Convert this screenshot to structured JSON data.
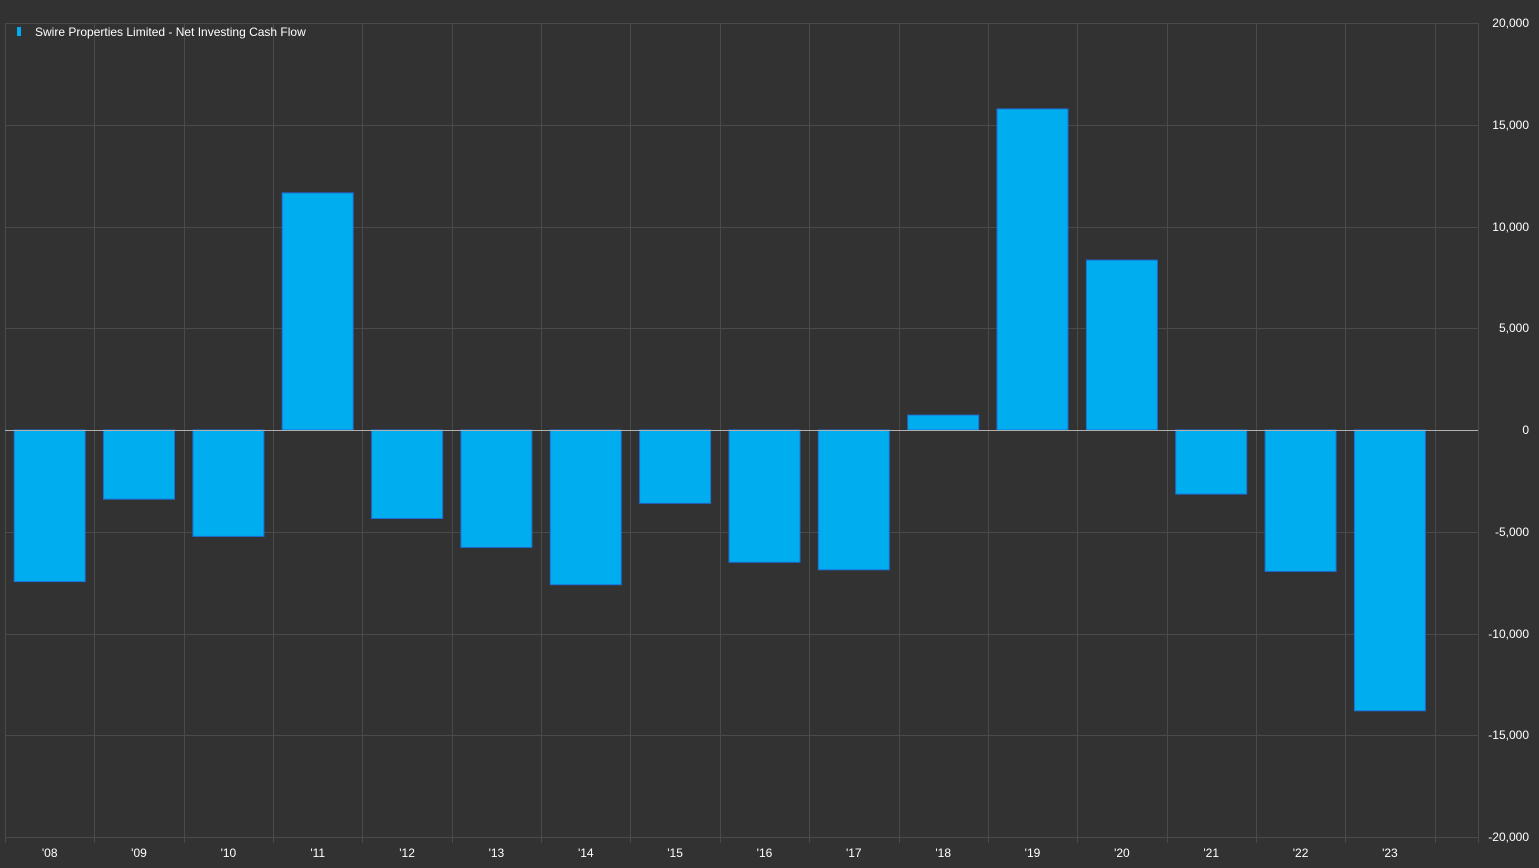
{
  "legend": {
    "label": "Swire Properties Limited - Net Investing Cash Flow",
    "placement": "top-left"
  },
  "colors": {
    "background": "#323232",
    "grid": "#4a4a4a",
    "bar_fill": "#00adee",
    "bar_stroke": "#1c6fd6",
    "zero_line": "#b0b0b0",
    "text": "#ffffff"
  },
  "chart_data": {
    "type": "bar",
    "title": "",
    "xlabel": "",
    "ylabel": "",
    "categories": [
      "'08",
      "'09",
      "'10",
      "'11",
      "'12",
      "'13",
      "'14",
      "'15",
      "'16",
      "'17",
      "'18",
      "'19",
      "'20",
      "'21",
      "'22",
      "'23"
    ],
    "series": [
      {
        "name": "Swire Properties Limited - Net Investing Cash Flow",
        "values": [
          -7450,
          -3400,
          -5230,
          11650,
          -4350,
          -5770,
          -7600,
          -3600,
          -6500,
          -6870,
          730,
          15780,
          8350,
          -3150,
          -6950,
          -13800
        ]
      }
    ],
    "ylim": [
      -20000,
      20000
    ],
    "yticks": [
      20000,
      15000,
      10000,
      5000,
      0,
      -5000,
      -10000,
      -15000,
      -20000
    ],
    "ytick_labels": [
      "20,000",
      "15,000",
      "10,000",
      "5,000",
      "0",
      "-5,000",
      "-10,000",
      "-15,000",
      "-20,000"
    ],
    "y_axis_side": "right",
    "grid": true
  }
}
